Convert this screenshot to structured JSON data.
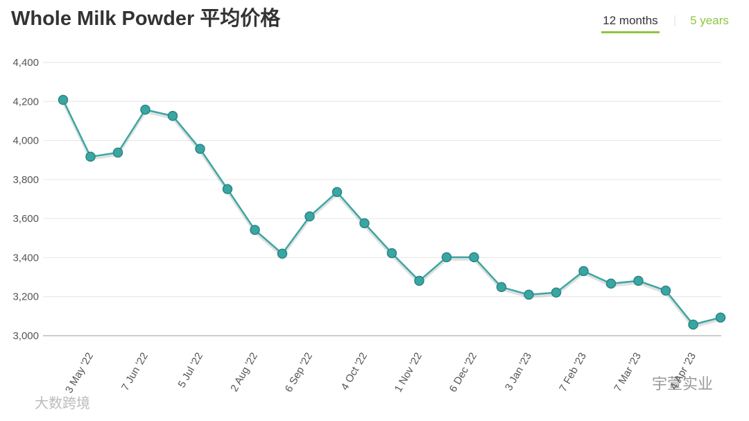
{
  "chart_data": {
    "type": "line",
    "title": "Whole Milk Powder 平均价格",
    "tabs": [
      "12 months",
      "5 years"
    ],
    "watermarks": [
      "大数跨境",
      "宇萱实业"
    ],
    "categories": [
      null,
      "3 May '22",
      null,
      "7 Jun '22",
      null,
      "5 Jul '22",
      null,
      "2 Aug '22",
      null,
      "6 Sep '22",
      null,
      "4 Oct '22",
      null,
      "1 Nov '22",
      null,
      "6 Dec '22",
      null,
      "3 Jan '23",
      null,
      "7 Feb '23",
      null,
      "7 Mar '23",
      null,
      "4 Apr '23",
      null
    ],
    "series": [
      {
        "color": "#3aa6a3",
        "values": [
          4208,
          3917,
          3938,
          4158,
          4126,
          3957,
          3751,
          3542,
          3420,
          3611,
          3736,
          3576,
          3423,
          3281,
          3402,
          3402,
          3249,
          3210,
          3221,
          3331,
          3267,
          3281,
          3231,
          3057,
          3093
        ]
      }
    ],
    "ylim": [
      3000,
      4400
    ],
    "yticks": [
      {
        "value": 3000,
        "label": "3,000"
      },
      {
        "value": 3200,
        "label": "3,200"
      },
      {
        "value": 3400,
        "label": "3,400"
      },
      {
        "value": 3600,
        "label": "3,600"
      },
      {
        "value": 3800,
        "label": "3,800"
      },
      {
        "value": 4000,
        "label": "4,000"
      },
      {
        "value": 4200,
        "label": "4,200"
      },
      {
        "value": 4400,
        "label": "4,400"
      }
    ],
    "grid": true
  }
}
